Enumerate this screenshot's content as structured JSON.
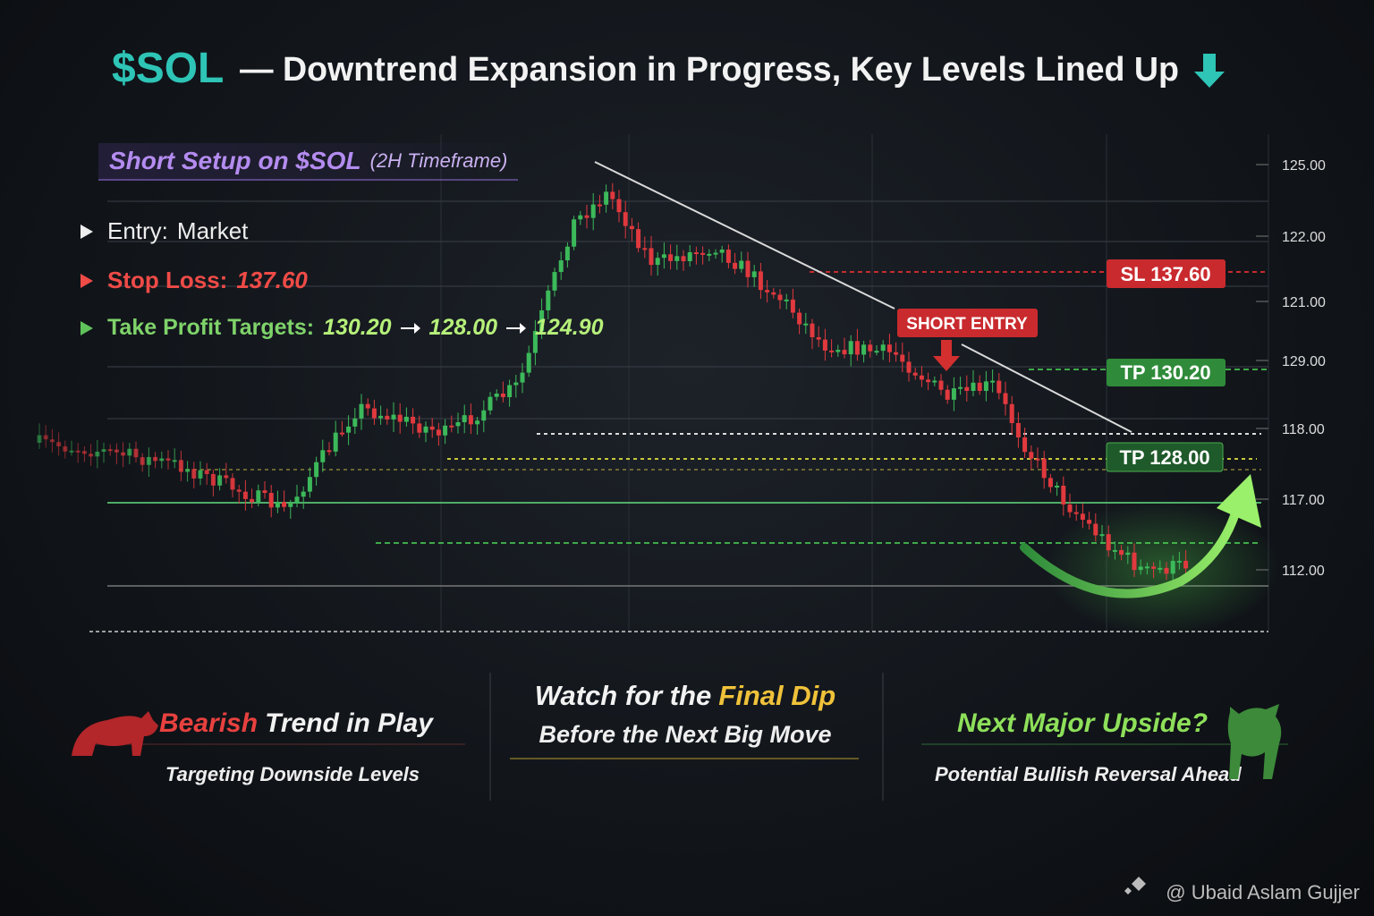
{
  "title": {
    "ticker": "$SOL",
    "text": "— Downtrend Expansion in Progress, Key Levels Lined Up"
  },
  "setup": {
    "heading": "Short Setup on $SOL",
    "timeframe": "(2H Timeframe)",
    "entry": {
      "label": "Entry:",
      "value": "Market"
    },
    "stop_loss": {
      "label": "Stop Loss:",
      "value": "137.60"
    },
    "take_profit": {
      "label": "Take Profit Targets:",
      "targets": [
        "130.20",
        "128.00",
        "124.90"
      ]
    }
  },
  "chart": {
    "price_labels": [
      "125.00",
      "122.00",
      "121.00",
      "129.00",
      "118.00",
      "117.00",
      "112.00"
    ],
    "tags": {
      "sl": "SL 137.60",
      "short_entry": "SHORT ENTRY",
      "tp1": "TP 130.20",
      "tp2": "TP 128.00"
    }
  },
  "panels": [
    {
      "highlight": "Bearish",
      "title": "Trend in Play",
      "subtitle": "Targeting Downside Levels"
    },
    {
      "title": "Watch for the",
      "highlight": "Final Dip",
      "subtitle": "Before the Next Big Move"
    },
    {
      "title": "Next Major Upside?",
      "subtitle": "Potential Bullish Reversal Ahead"
    }
  ],
  "watermark": "@ Ubaid Aslam Gujjer"
}
